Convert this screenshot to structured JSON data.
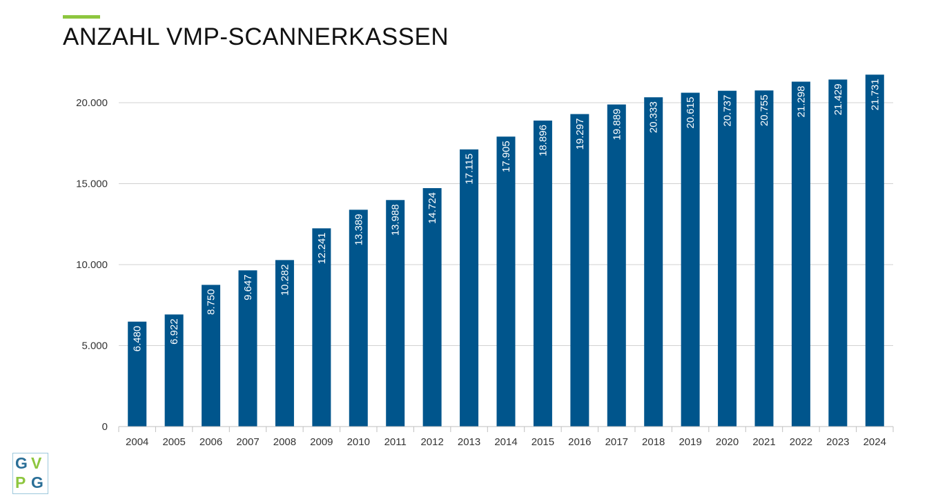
{
  "page": {
    "title": "ANZAHL VMP-SCANNERKASSEN",
    "accent_color": "#8dc63f"
  },
  "logo": {
    "letters": [
      "G",
      "V",
      "P",
      "G"
    ],
    "colors": [
      "#2a6f97",
      "#8dc63f",
      "#8dc63f",
      "#2a6f97"
    ]
  },
  "chart_data": {
    "type": "bar",
    "title": "ANZAHL VMP-SCANNERKASSEN",
    "xlabel": "",
    "ylabel": "",
    "categories": [
      "2004",
      "2005",
      "2006",
      "2007",
      "2008",
      "2009",
      "2010",
      "2011",
      "2012",
      "2013",
      "2014",
      "2015",
      "2016",
      "2017",
      "2018",
      "2019",
      "2020",
      "2021",
      "2022",
      "2023",
      "2024"
    ],
    "values": [
      6480,
      6922,
      8750,
      9647,
      10282,
      12241,
      13389,
      13988,
      14724,
      17115,
      17905,
      18896,
      19297,
      19889,
      20333,
      20615,
      20737,
      20755,
      21298,
      21429,
      21731
    ],
    "data_labels": [
      "6.480",
      "6.922",
      "8.750",
      "9.647",
      "10.282",
      "12.241",
      "13.389",
      "13.988",
      "14.724",
      "17.115",
      "17.905",
      "18.896",
      "19.297",
      "19.889",
      "20.333",
      "20.615",
      "20.737",
      "20.755",
      "21.298",
      "21.429",
      "21.731"
    ],
    "ylim": [
      0,
      20000
    ],
    "yticks": [
      0,
      5000,
      10000,
      15000,
      20000
    ],
    "ytick_labels": [
      "0",
      "5.000",
      "10.000",
      "15.000",
      "20.000"
    ],
    "grid": true,
    "legend": "none",
    "bar_color": "#00558c",
    "label_color": "#ffffff",
    "grid_color": "#d0d0d0"
  }
}
